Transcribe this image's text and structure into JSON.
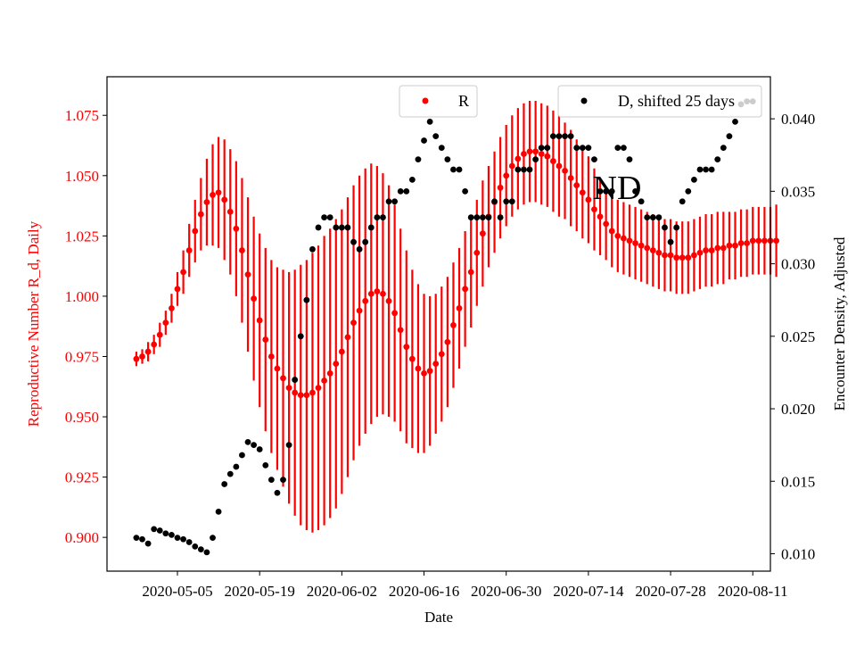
{
  "chart_data": {
    "type": "scatter",
    "title": "",
    "xlabel": "Date",
    "ylabel_left": "Reproductive Number R_d, Daily",
    "ylabel_right": "Encounter Density, Adjusted",
    "annotation": "ND",
    "x_ticks": [
      "2020-05-05",
      "2020-05-19",
      "2020-06-02",
      "2020-06-16",
      "2020-06-30",
      "2020-07-14",
      "2020-07-28",
      "2020-08-11"
    ],
    "x_range": [
      "2020-04-23",
      "2020-08-14"
    ],
    "y_left_ticks": [
      "0.900",
      "0.925",
      "0.950",
      "0.975",
      "1.000",
      "1.025",
      "1.050",
      "1.075"
    ],
    "y_left_range": [
      0.886,
      1.091
    ],
    "y_right_ticks": [
      "0.010",
      "0.015",
      "0.020",
      "0.025",
      "0.030",
      "0.035",
      "0.040"
    ],
    "y_right_range": [
      0.0088,
      0.0429
    ],
    "left_axis_color": "#ff0000",
    "r_color": "#ff0000",
    "d_color": "#000000",
    "legend_r": {
      "label": "R",
      "placement": "top-center"
    },
    "legend_d": {
      "label": "D, shifted 25 days",
      "placement": "top-right"
    },
    "series_r": {
      "name": "R",
      "start": "2020-04-28",
      "interval_days": 1,
      "values": [
        0.974,
        0.975,
        0.977,
        0.98,
        0.984,
        0.989,
        0.995,
        1.003,
        1.01,
        1.019,
        1.027,
        1.034,
        1.039,
        1.042,
        1.043,
        1.04,
        1.035,
        1.028,
        1.019,
        1.009,
        0.999,
        0.99,
        0.982,
        0.975,
        0.97,
        0.966,
        0.962,
        0.96,
        0.959,
        0.959,
        0.96,
        0.962,
        0.965,
        0.968,
        0.972,
        0.977,
        0.983,
        0.989,
        0.994,
        0.998,
        1.001,
        1.002,
        1.001,
        0.998,
        0.993,
        0.986,
        0.979,
        0.974,
        0.97,
        0.968,
        0.969,
        0.972,
        0.976,
        0.981,
        0.988,
        0.995,
        1.003,
        1.01,
        1.018,
        1.026,
        1.033,
        1.039,
        1.045,
        1.05,
        1.054,
        1.057,
        1.059,
        1.06,
        1.06,
        1.059,
        1.058,
        1.056,
        1.054,
        1.052,
        1.049,
        1.046,
        1.043,
        1.04,
        1.036,
        1.033,
        1.03,
        1.027,
        1.025,
        1.024,
        1.023,
        1.022,
        1.021,
        1.02,
        1.019,
        1.018,
        1.017,
        1.017,
        1.016,
        1.016,
        1.016,
        1.017,
        1.018,
        1.019,
        1.019,
        1.02,
        1.02,
        1.021,
        1.021,
        1.022,
        1.022,
        1.023,
        1.023,
        1.023,
        1.023,
        1.023
      ],
      "half_width": [
        0.003,
        0.003,
        0.004,
        0.004,
        0.005,
        0.005,
        0.006,
        0.007,
        0.009,
        0.011,
        0.013,
        0.015,
        0.018,
        0.021,
        0.023,
        0.025,
        0.026,
        0.028,
        0.03,
        0.032,
        0.034,
        0.036,
        0.038,
        0.04,
        0.042,
        0.045,
        0.048,
        0.051,
        0.054,
        0.056,
        0.058,
        0.059,
        0.06,
        0.06,
        0.06,
        0.059,
        0.058,
        0.057,
        0.056,
        0.055,
        0.054,
        0.052,
        0.05,
        0.048,
        0.045,
        0.042,
        0.04,
        0.037,
        0.035,
        0.033,
        0.031,
        0.029,
        0.028,
        0.027,
        0.026,
        0.025,
        0.024,
        0.023,
        0.022,
        0.022,
        0.021,
        0.021,
        0.021,
        0.021,
        0.021,
        0.021,
        0.021,
        0.021,
        0.021,
        0.021,
        0.021,
        0.021,
        0.021,
        0.02,
        0.02,
        0.019,
        0.019,
        0.018,
        0.017,
        0.016,
        0.015,
        0.015,
        0.015,
        0.015,
        0.015,
        0.015,
        0.015,
        0.015,
        0.015,
        0.015,
        0.015,
        0.015,
        0.015,
        0.015,
        0.015,
        0.015,
        0.015,
        0.015,
        0.015,
        0.015,
        0.015,
        0.014,
        0.014,
        0.014,
        0.014,
        0.014,
        0.014,
        0.014,
        0.014,
        0.015
      ]
    },
    "series_d": {
      "name": "D, shifted 25 days",
      "points": [
        [
          "2020-04-28",
          0.0111
        ],
        [
          "2020-04-29",
          0.011
        ],
        [
          "2020-04-30",
          0.0107
        ],
        [
          "2020-05-01",
          0.0117
        ],
        [
          "2020-05-02",
          0.0116
        ],
        [
          "2020-05-03",
          0.0114
        ],
        [
          "2020-05-04",
          0.0113
        ],
        [
          "2020-05-05",
          0.0111
        ],
        [
          "2020-05-06",
          0.011
        ],
        [
          "2020-05-07",
          0.0108
        ],
        [
          "2020-05-08",
          0.0105
        ],
        [
          "2020-05-09",
          0.0103
        ],
        [
          "2020-05-10",
          0.0101
        ],
        [
          "2020-05-11",
          0.0111
        ],
        [
          "2020-05-12",
          0.0129
        ],
        [
          "2020-05-13",
          0.0148
        ],
        [
          "2020-05-14",
          0.0155
        ],
        [
          "2020-05-15",
          0.016
        ],
        [
          "2020-05-16",
          0.0168
        ],
        [
          "2020-05-17",
          0.0177
        ],
        [
          "2020-05-18",
          0.0175
        ],
        [
          "2020-05-19",
          0.0172
        ],
        [
          "2020-05-20",
          0.0161
        ],
        [
          "2020-05-21",
          0.0151
        ],
        [
          "2020-05-22",
          0.0142
        ],
        [
          "2020-05-23",
          0.0151
        ],
        [
          "2020-05-24",
          0.0175
        ],
        [
          "2020-05-25",
          0.022
        ],
        [
          "2020-05-26",
          0.025
        ],
        [
          "2020-05-27",
          0.0275
        ],
        [
          "2020-05-28",
          0.031
        ],
        [
          "2020-05-29",
          0.0325
        ],
        [
          "2020-05-30",
          0.0332
        ],
        [
          "2020-05-31",
          0.0332
        ],
        [
          "2020-06-01",
          0.0325
        ],
        [
          "2020-06-02",
          0.0325
        ],
        [
          "2020-06-03",
          0.0325
        ],
        [
          "2020-06-04",
          0.0315
        ],
        [
          "2020-06-05",
          0.031
        ],
        [
          "2020-06-06",
          0.0315
        ],
        [
          "2020-06-07",
          0.0325
        ],
        [
          "2020-06-08",
          0.0332
        ],
        [
          "2020-06-09",
          0.0332
        ],
        [
          "2020-06-10",
          0.0343
        ],
        [
          "2020-06-11",
          0.0343
        ],
        [
          "2020-06-12",
          0.035
        ],
        [
          "2020-06-13",
          0.035
        ],
        [
          "2020-06-14",
          0.0358
        ],
        [
          "2020-06-15",
          0.0372
        ],
        [
          "2020-06-16",
          0.0385
        ],
        [
          "2020-06-17",
          0.0398
        ],
        [
          "2020-06-18",
          0.0388
        ],
        [
          "2020-06-19",
          0.038
        ],
        [
          "2020-06-20",
          0.0372
        ],
        [
          "2020-06-21",
          0.0365
        ],
        [
          "2020-06-22",
          0.0365
        ],
        [
          "2020-06-23",
          0.035
        ],
        [
          "2020-06-24",
          0.0332
        ],
        [
          "2020-06-25",
          0.0332
        ],
        [
          "2020-06-26",
          0.0332
        ],
        [
          "2020-06-27",
          0.0332
        ],
        [
          "2020-06-28",
          0.0343
        ],
        [
          "2020-06-29",
          0.0332
        ],
        [
          "2020-06-30",
          0.0343
        ],
        [
          "2020-07-01",
          0.0343
        ],
        [
          "2020-07-02",
          0.0365
        ],
        [
          "2020-07-03",
          0.0365
        ],
        [
          "2020-07-04",
          0.0365
        ],
        [
          "2020-07-05",
          0.0372
        ],
        [
          "2020-07-06",
          0.038
        ],
        [
          "2020-07-07",
          0.038
        ],
        [
          "2020-07-08",
          0.0388
        ],
        [
          "2020-07-09",
          0.0388
        ],
        [
          "2020-07-10",
          0.0388
        ],
        [
          "2020-07-11",
          0.0388
        ],
        [
          "2020-07-12",
          0.038
        ],
        [
          "2020-07-13",
          0.038
        ],
        [
          "2020-07-14",
          0.038
        ],
        [
          "2020-07-15",
          0.0372
        ],
        [
          "2020-07-16",
          0.035
        ],
        [
          "2020-07-17",
          0.035
        ],
        [
          "2020-07-18",
          0.035
        ],
        [
          "2020-07-19",
          0.038
        ],
        [
          "2020-07-20",
          0.038
        ],
        [
          "2020-07-21",
          0.0372
        ],
        [
          "2020-07-22",
          0.035
        ],
        [
          "2020-07-23",
          0.0343
        ],
        [
          "2020-07-24",
          0.0332
        ],
        [
          "2020-07-25",
          0.0332
        ],
        [
          "2020-07-26",
          0.0332
        ],
        [
          "2020-07-27",
          0.0325
        ],
        [
          "2020-07-28",
          0.0315
        ],
        [
          "2020-07-29",
          0.0325
        ],
        [
          "2020-07-30",
          0.0343
        ],
        [
          "2020-07-31",
          0.035
        ],
        [
          "2020-08-01",
          0.0358
        ],
        [
          "2020-08-02",
          0.0365
        ],
        [
          "2020-08-03",
          0.0365
        ],
        [
          "2020-08-04",
          0.0365
        ],
        [
          "2020-08-05",
          0.0372
        ],
        [
          "2020-08-06",
          0.038
        ],
        [
          "2020-08-07",
          0.0388
        ],
        [
          "2020-08-08",
          0.0398
        ],
        [
          "2020-08-09",
          0.041
        ],
        [
          "2020-08-10",
          0.0412
        ],
        [
          "2020-08-11",
          0.0412
        ]
      ]
    }
  }
}
